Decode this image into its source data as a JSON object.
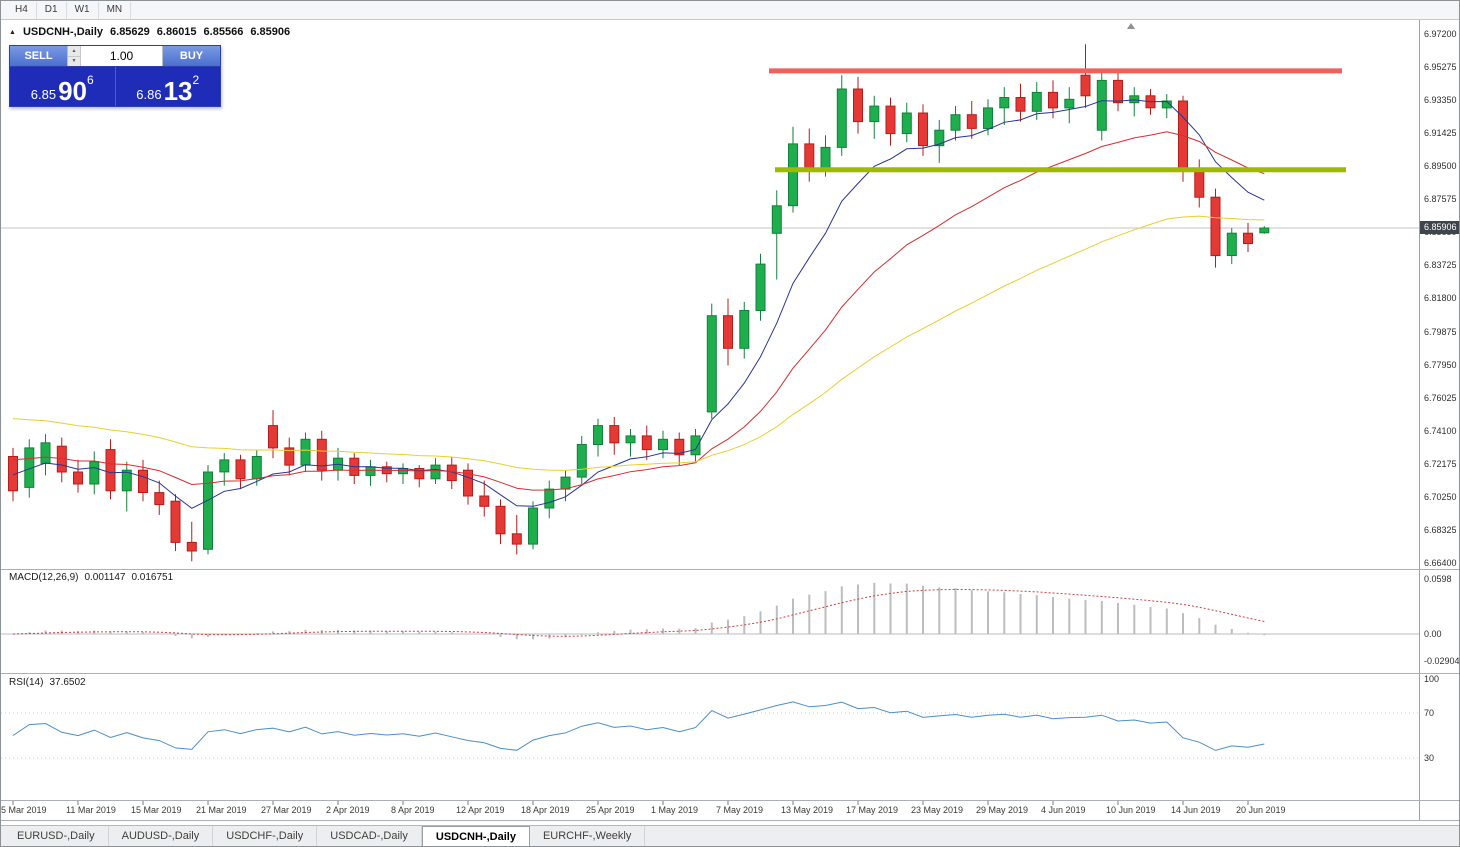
{
  "menu": {
    "timeframes": [
      {
        "label": "H4"
      },
      {
        "label": "D1"
      },
      {
        "label": "W1"
      },
      {
        "label": "MN"
      }
    ]
  },
  "chart_header": {
    "collapse_icon": "▲",
    "symbol_title": "USDCNH-,Daily",
    "open": "6.85629",
    "high": "6.86015",
    "low": "6.85566",
    "close": "6.85906"
  },
  "one_click_trading": {
    "sell_label": "SELL",
    "buy_label": "BUY",
    "volume": "1.00",
    "bid": {
      "big_figure": "6.85",
      "pips": "90",
      "pipette": "6"
    },
    "ask": {
      "big_figure": "6.86",
      "pips": "13",
      "pipette": "2"
    },
    "colors": {
      "button": "#4a6fce",
      "panel": "#1e2cb8"
    }
  },
  "price_scale": {
    "labels": [
      "6.97200",
      "6.95275",
      "6.93350",
      "6.91425",
      "6.89500",
      "6.87575",
      "6.85650",
      "6.83725",
      "6.81800",
      "6.79875",
      "6.77950",
      "6.76025",
      "6.74100",
      "6.72175",
      "6.70250",
      "6.68325",
      "6.66400"
    ],
    "current_price": "6.85906"
  },
  "indicator_macd": {
    "name": "MACD(12,26,9)",
    "main_value": "0.001147",
    "signal_value": "0.016751",
    "scale_labels": [
      {
        "text": "0.0598",
        "value": 0.0598
      },
      {
        "text": "0.00",
        "value": 0
      },
      {
        "text": "-0.029045",
        "value": -0.029045
      }
    ]
  },
  "indicator_rsi": {
    "name": "RSI(14)",
    "value": "37.6502",
    "scale_labels": [
      {
        "text": "100",
        "value": 100
      },
      {
        "text": "70",
        "value": 70
      },
      {
        "text": "30",
        "value": 30
      }
    ],
    "levels": [
      70,
      30
    ]
  },
  "x_axis_labels": [
    {
      "bar": 0,
      "text": "5 Mar 2019"
    },
    {
      "bar": 4,
      "text": "11 Mar 2019"
    },
    {
      "bar": 8,
      "text": "15 Mar 2019"
    },
    {
      "bar": 12,
      "text": "21 Mar 2019"
    },
    {
      "bar": 16,
      "text": "27 Mar 2019"
    },
    {
      "bar": 20,
      "text": "2 Apr 2019"
    },
    {
      "bar": 24,
      "text": "8 Apr 2019"
    },
    {
      "bar": 28,
      "text": "12 Apr 2019"
    },
    {
      "bar": 32,
      "text": "18 Apr 2019"
    },
    {
      "bar": 36,
      "text": "25 Apr 2019"
    },
    {
      "bar": 40,
      "text": "1 May 2019"
    },
    {
      "bar": 44,
      "text": "7 May 2019"
    },
    {
      "bar": 48,
      "text": "13 May 2019"
    },
    {
      "bar": 52,
      "text": "17 May 2019"
    },
    {
      "bar": 56,
      "text": "23 May 2019"
    },
    {
      "bar": 60,
      "text": "29 May 2019"
    },
    {
      "bar": 64,
      "text": "4 Jun 2019"
    },
    {
      "bar": 68,
      "text": "10 Jun 2019"
    },
    {
      "bar": 72,
      "text": "14 Jun 2019"
    },
    {
      "bar": 76,
      "text": "20 Jun 2019"
    }
  ],
  "tabs": [
    {
      "label": "EURUSD-,Daily",
      "active": false
    },
    {
      "label": "AUDUSD-,Daily",
      "active": false
    },
    {
      "label": "USDCHF-,Daily",
      "active": false
    },
    {
      "label": "USDCAD-,Daily",
      "active": false
    },
    {
      "label": "USDCNH-,Daily",
      "active": true
    },
    {
      "label": "EURCHF-,Weekly",
      "active": false
    }
  ],
  "chart_data": {
    "type": "candlestick",
    "symbol": "USDCNH",
    "timeframe": "Daily",
    "title": "USDCNH-,Daily",
    "price_axis": {
      "max": 6.972,
      "min": 6.664,
      "step": 0.01925
    },
    "current_price": 6.85906,
    "candles": [
      [
        "5 Mar 2019",
        6.726,
        6.731,
        6.7,
        6.706
      ],
      [
        "6 Mar 2019",
        6.708,
        6.736,
        6.702,
        6.731
      ],
      [
        "7 Mar 2019",
        6.722,
        6.739,
        6.715,
        6.734
      ],
      [
        "8 Mar 2019",
        6.732,
        6.737,
        6.711,
        6.717
      ],
      [
        "11 Mar 2019",
        6.717,
        6.724,
        6.705,
        6.71
      ],
      [
        "12 Mar 2019",
        6.71,
        6.729,
        6.704,
        6.723
      ],
      [
        "13 Mar 2019",
        6.73,
        6.736,
        6.701,
        6.706
      ],
      [
        "14 Mar 2019",
        6.706,
        6.723,
        6.694,
        6.718
      ],
      [
        "15 Mar 2019",
        6.718,
        6.724,
        6.7,
        6.705
      ],
      [
        "18 Mar 2019",
        6.705,
        6.712,
        6.692,
        6.698
      ],
      [
        "19 Mar 2019",
        6.7,
        6.704,
        6.671,
        6.676
      ],
      [
        "20 Mar 2019",
        6.676,
        6.688,
        6.665,
        6.671
      ],
      [
        "21 Mar 2019",
        6.672,
        6.721,
        6.669,
        6.717
      ],
      [
        "22 Mar 2019",
        6.717,
        6.728,
        6.709,
        6.724
      ],
      [
        "25 Mar 2019",
        6.724,
        6.727,
        6.707,
        6.713
      ],
      [
        "26 Mar 2019",
        6.713,
        6.73,
        6.709,
        6.726
      ],
      [
        "27 Mar 2019",
        6.744,
        6.753,
        6.725,
        6.731
      ],
      [
        "28 Mar 2019",
        6.731,
        6.737,
        6.715,
        6.721
      ],
      [
        "29 Mar 2019",
        6.721,
        6.74,
        6.717,
        6.736
      ],
      [
        "1 Apr 2019",
        6.736,
        6.741,
        6.712,
        6.718
      ],
      [
        "2 Apr 2019",
        6.718,
        6.731,
        6.712,
        6.725
      ],
      [
        "3 Apr 2019",
        6.725,
        6.728,
        6.71,
        6.715
      ],
      [
        "4 Apr 2019",
        6.715,
        6.724,
        6.709,
        6.72
      ],
      [
        "5 Apr 2019",
        6.72,
        6.723,
        6.711,
        6.716
      ],
      [
        "8 Apr 2019",
        6.716,
        6.722,
        6.71,
        6.719
      ],
      [
        "9 Apr 2019",
        6.719,
        6.721,
        6.708,
        6.713
      ],
      [
        "10 Apr 2019",
        6.713,
        6.725,
        6.71,
        6.721
      ],
      [
        "11 Apr 2019",
        6.721,
        6.726,
        6.707,
        6.712
      ],
      [
        "12 Apr 2019",
        6.718,
        6.722,
        6.698,
        6.703
      ],
      [
        "15 Apr 2019",
        6.703,
        6.712,
        6.691,
        6.697
      ],
      [
        "16 Apr 2019",
        6.697,
        6.701,
        6.675,
        6.681
      ],
      [
        "17 Apr 2019",
        6.681,
        6.692,
        6.669,
        6.675
      ],
      [
        "18 Apr 2019",
        6.675,
        6.7,
        6.672,
        6.696
      ],
      [
        "22 Apr 2019",
        6.696,
        6.712,
        6.69,
        6.707
      ],
      [
        "23 Apr 2019",
        6.707,
        6.718,
        6.7,
        6.714
      ],
      [
        "24 Apr 2019",
        6.714,
        6.738,
        6.71,
        6.733
      ],
      [
        "25 Apr 2019",
        6.733,
        6.748,
        6.726,
        6.744
      ],
      [
        "26 Apr 2019",
        6.744,
        6.749,
        6.727,
        6.734
      ],
      [
        "29 Apr 2019",
        6.734,
        6.742,
        6.726,
        6.738
      ],
      [
        "30 Apr 2019",
        6.738,
        6.744,
        6.724,
        6.73
      ],
      [
        "1 May 2019",
        6.73,
        6.741,
        6.725,
        6.736
      ],
      [
        "2 May 2019",
        6.736,
        6.74,
        6.721,
        6.727
      ],
      [
        "3 May 2019",
        6.727,
        6.742,
        6.723,
        6.738
      ],
      [
        "6 May 2019",
        6.752,
        6.815,
        6.748,
        6.808
      ],
      [
        "7 May 2019",
        6.808,
        6.818,
        6.779,
        6.789
      ],
      [
        "8 May 2019",
        6.789,
        6.816,
        6.783,
        6.811
      ],
      [
        "9 May 2019",
        6.811,
        6.844,
        6.805,
        6.838
      ],
      [
        "10 May 2019",
        6.856,
        6.881,
        6.829,
        6.872
      ],
      [
        "13 May 2019",
        6.872,
        6.918,
        6.868,
        6.908
      ],
      [
        "14 May 2019",
        6.908,
        6.917,
        6.886,
        6.894
      ],
      [
        "15 May 2019",
        6.894,
        6.913,
        6.889,
        6.906
      ],
      [
        "16 May 2019",
        6.906,
        6.948,
        6.901,
        6.94
      ],
      [
        "17 May 2019",
        6.94,
        6.947,
        6.914,
        6.921
      ],
      [
        "20 May 2019",
        6.921,
        6.936,
        6.911,
        6.93
      ],
      [
        "21 May 2019",
        6.93,
        6.935,
        6.907,
        6.914
      ],
      [
        "22 May 2019",
        6.914,
        6.932,
        6.909,
        6.926
      ],
      [
        "23 May 2019",
        6.926,
        6.931,
        6.901,
        6.907
      ],
      [
        "24 May 2019",
        6.907,
        6.922,
        6.897,
        6.916
      ],
      [
        "27 May 2019",
        6.916,
        6.93,
        6.91,
        6.925
      ],
      [
        "28 May 2019",
        6.925,
        6.933,
        6.911,
        6.917
      ],
      [
        "29 May 2019",
        6.917,
        6.934,
        6.913,
        6.929
      ],
      [
        "30 May 2019",
        6.929,
        6.941,
        6.919,
        6.935
      ],
      [
        "31 May 2019",
        6.935,
        6.943,
        6.921,
        6.927
      ],
      [
        "3 Jun 2019",
        6.927,
        6.944,
        6.922,
        6.938
      ],
      [
        "4 Jun 2019",
        6.938,
        6.945,
        6.923,
        6.929
      ],
      [
        "5 Jun 2019",
        6.929,
        6.941,
        6.92,
        6.934
      ],
      [
        "6 Jun 2019",
        6.948,
        6.966,
        6.929,
        6.936
      ],
      [
        "7 Jun 2019",
        6.916,
        6.951,
        6.91,
        6.945
      ],
      [
        "10 Jun 2019",
        6.945,
        6.95,
        6.927,
        6.932
      ],
      [
        "11 Jun 2019",
        6.932,
        6.941,
        6.924,
        6.936
      ],
      [
        "12 Jun 2019",
        6.936,
        6.94,
        6.925,
        6.929
      ],
      [
        "13 Jun 2019",
        6.929,
        6.937,
        6.923,
        6.933
      ],
      [
        "14 Jun 2019",
        6.933,
        6.936,
        6.886,
        6.892
      ],
      [
        "17 Jun 2019",
        6.892,
        6.899,
        6.871,
        6.877
      ],
      [
        "18 Jun 2019",
        6.877,
        6.882,
        6.836,
        6.843
      ],
      [
        "19 Jun 2019",
        6.843,
        6.859,
        6.838,
        6.856
      ],
      [
        "20 Jun 2019",
        6.856,
        6.862,
        6.845,
        6.85
      ],
      [
        "21 Jun 2019",
        6.85629,
        6.86015,
        6.85566,
        6.85906
      ]
    ],
    "moving_averages": [
      {
        "name": "ma-fast",
        "period": 8,
        "seed": 6.718,
        "color": "#283593"
      },
      {
        "name": "ma-mid",
        "period": 20,
        "seed": 6.726,
        "color": "#d32f2f"
      },
      {
        "name": "ma-slow",
        "period": 45,
        "seed": 6.75,
        "color": "#e8cf30"
      }
    ],
    "horizontal_lines": [
      {
        "name": "resistance",
        "price": 6.9505,
        "color": "#f0615c",
        "thickness": 5,
        "from_bar": 46.5,
        "to_bar": 81.8
      },
      {
        "name": "support",
        "price": 6.893,
        "color": "#9fb800",
        "thickness": 5,
        "from_bar": 46.9,
        "to_bar": 82.0
      }
    ],
    "colors": {
      "up_fill": "#1fae4d",
      "up_border": "#12813a",
      "down_fill": "#e53935",
      "down_border": "#b71c1c",
      "macd_hist": "#bdbdbd",
      "macd_signal": "#d24040",
      "rsi_line": "#4a8fc7",
      "current_price_line": "#c4c4c4"
    }
  }
}
